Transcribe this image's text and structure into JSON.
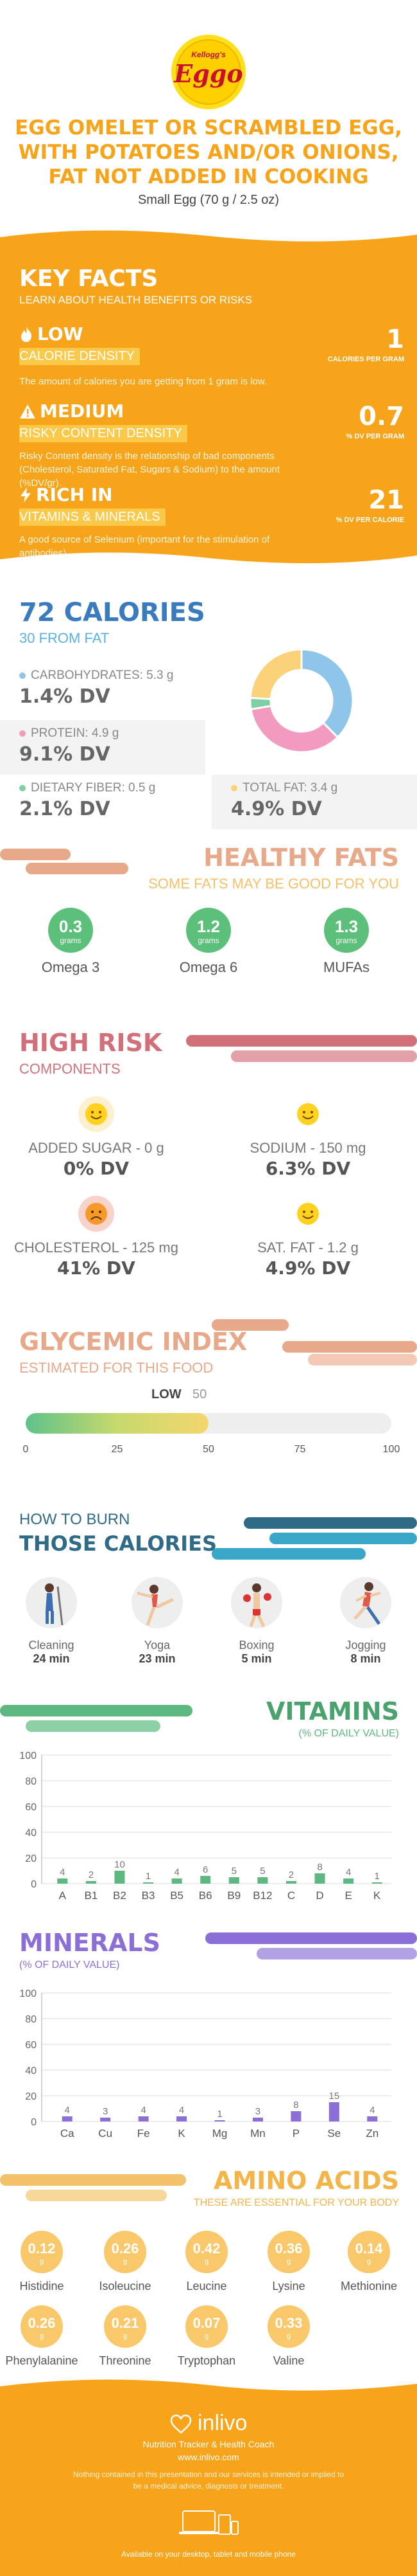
{
  "header": {
    "logo_text": "Eggo",
    "logo_brand": "Kellogg's",
    "title": "EGG OMELET OR SCRAMBLED EGG, WITH POTATOES AND/OR ONIONS, FAT NOT ADDED IN COOKING",
    "serving": "Small Egg (70 g / 2.5 oz)"
  },
  "key_facts": {
    "title": "KEY FACTS",
    "subtitle": "LEARN ABOUT HEALTH BENEFITS OR RISKS",
    "items": [
      {
        "level": "LOW",
        "label": "CALORIE DENSITY",
        "desc": "The amount of calories you are getting from 1 gram is low.",
        "value": "1",
        "unit": "CALORIES PER GRAM",
        "icon": "flame-icon"
      },
      {
        "level": "MEDIUM",
        "label": "RISKY CONTENT DENSITY",
        "desc": "Risky Content density is the relationship of bad components (Cholesterol, Saturated Fat, Sugars & Sodium) to the amount (%DV/gr).",
        "value": "0.7",
        "unit": "% DV PER GRAM",
        "icon": "warning-icon"
      },
      {
        "level": "RICH IN",
        "label": "VITAMINS & MINERALS",
        "desc": "A good source of Selenium (important for the stimulation of antibodies).",
        "value": "21",
        "unit": "% DV PER CALORIE",
        "icon": "bolt-icon"
      }
    ]
  },
  "calories": {
    "title": "72 CALORIES",
    "from_fat": "30 FROM FAT",
    "nutrients": [
      {
        "label": "CARBOHYDRATES: 5.3 g",
        "dv": "1.4% DV",
        "color": "#8ec5e8"
      },
      {
        "label": "PROTEIN: 4.9 g",
        "dv": "9.1% DV",
        "color": "#f29ac0"
      },
      {
        "label": "DIETARY FIBER: 0.5 g",
        "dv": "2.1% DV",
        "color": "#7fcfa4"
      },
      {
        "label": "TOTAL FAT: 3.4 g",
        "dv": "4.9% DV",
        "color": "#fbd27a"
      }
    ],
    "donut": [
      {
        "name": "carbohydrates",
        "value": 5.3,
        "color": "#8ec5e8"
      },
      {
        "name": "protein",
        "value": 4.9,
        "color": "#f29ac0"
      },
      {
        "name": "fiber",
        "value": 0.5,
        "color": "#7fcfa4"
      },
      {
        "name": "fat",
        "value": 3.4,
        "color": "#fbd27a"
      }
    ]
  },
  "healthy_fats": {
    "title": "HEALTHY FATS",
    "subtitle": "SOME FATS MAY BE GOOD FOR YOU",
    "unit": "grams",
    "items": [
      {
        "name": "Omega 3",
        "value": "0.3"
      },
      {
        "name": "Omega 6",
        "value": "1.2"
      },
      {
        "name": "MUFAs",
        "value": "1.3"
      }
    ]
  },
  "high_risk": {
    "title": "HIGH RISK",
    "subtitle": "COMPONENTS",
    "items": [
      {
        "label": "ADDED SUGAR - 0 g",
        "dv": "0% DV",
        "face": "happy"
      },
      {
        "label": "SODIUM - 150 mg",
        "dv": "6.3% DV",
        "face": "happy"
      },
      {
        "label": "CHOLESTEROL - 125 mg",
        "dv": "41% DV",
        "face": "sad"
      },
      {
        "label": "SAT. FAT - 1.2 g",
        "dv": "4.9% DV",
        "face": "happy"
      }
    ]
  },
  "glycemic": {
    "title": "GLYCEMIC INDEX",
    "subtitle": "ESTIMATED FOR THIS FOOD",
    "level": "LOW",
    "value": 50,
    "value_label": "50",
    "ticks": [
      "0",
      "25",
      "50",
      "75",
      "100"
    ]
  },
  "burn": {
    "title1": "HOW TO BURN",
    "title2": "THOSE CALORIES",
    "activities": [
      {
        "name": "Cleaning",
        "time": "24 min",
        "icon": "cleaning-icon"
      },
      {
        "name": "Yoga",
        "time": "23 min",
        "icon": "yoga-icon"
      },
      {
        "name": "Boxing",
        "time": "5 min",
        "icon": "boxing-icon"
      },
      {
        "name": "Jogging",
        "time": "8 min",
        "icon": "jogging-icon"
      }
    ]
  },
  "vitamins": {
    "title": "VITAMINS",
    "subtitle": "(% OF DAILY VALUE)",
    "color": "#5cb87f"
  },
  "minerals": {
    "title": "MINERALS",
    "subtitle": "(% OF DAILY VALUE)",
    "color": "#8b6fd6"
  },
  "chart_data": [
    {
      "type": "bar",
      "title": "VITAMINS",
      "categories": [
        "A",
        "B1",
        "B2",
        "B3",
        "B5",
        "B6",
        "B9",
        "B12",
        "C",
        "D",
        "E",
        "K"
      ],
      "values": [
        4,
        2,
        10,
        1,
        4,
        6,
        5,
        5,
        2,
        8,
        4,
        1
      ],
      "ylim": [
        0,
        100
      ],
      "yticks": [
        "0",
        "20",
        "40",
        "60",
        "80",
        "100"
      ],
      "grid": true
    },
    {
      "type": "bar",
      "title": "MINERALS",
      "categories": [
        "Ca",
        "Cu",
        "Fe",
        "K",
        "Mg",
        "Mn",
        "P",
        "Se",
        "Zn"
      ],
      "values": [
        4,
        3,
        4,
        4,
        1,
        3,
        8,
        15,
        4
      ],
      "ylim": [
        0,
        100
      ],
      "yticks": [
        "0",
        "20",
        "40",
        "60",
        "80",
        "100"
      ],
      "grid": true
    }
  ],
  "amino": {
    "title": "AMINO ACIDS",
    "subtitle": "THESE ARE ESSENTIAL FOR YOUR BODY",
    "unit": "g",
    "items": [
      {
        "name": "Histidine",
        "value": "0.12"
      },
      {
        "name": "Isoleucine",
        "value": "0.26"
      },
      {
        "name": "Leucine",
        "value": "0.42"
      },
      {
        "name": "Lysine",
        "value": "0.36"
      },
      {
        "name": "Methionine",
        "value": "0.14"
      },
      {
        "name": "Phenylalanine",
        "value": "0.26"
      },
      {
        "name": "Threonine",
        "value": "0.21"
      },
      {
        "name": "Tryptophan",
        "value": "0.07"
      },
      {
        "name": "Valine",
        "value": "0.33"
      }
    ]
  },
  "footer": {
    "brand": "inlivo",
    "tagline": "Nutrition Tracker & Health Coach",
    "url": "www.inlivo.com",
    "disclaimer": "Nothing contained in this presentation and our services is intended or implied to be a medical advice, diagnosis or treatment.",
    "available": "Available on your desktop, tablet and mobile phone"
  }
}
